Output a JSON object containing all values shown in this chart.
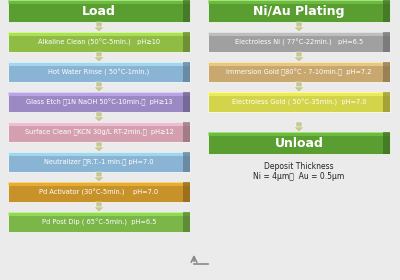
{
  "background_color": "#ebebeb",
  "left_column": {
    "title": "Load",
    "boxes": [
      {
        "text": "Alkaline Clean (50°C-5min.)   pH≥10",
        "color": "#8fbc45"
      },
      {
        "text": "Hot Water Rinse ( 50°C-1min.)",
        "color": "#8ab4d4"
      },
      {
        "text": "Glass Etch （1N NaOH 50°C-10min.）  pH≥13",
        "color": "#9b89c4"
      },
      {
        "text": "Surface Clean （KCN 30g/L RT-2min.）  pH≥12",
        "color": "#d4a0b0"
      },
      {
        "text": "Neutralizer （R.T.-1 min.） pH=7.0",
        "color": "#8ab4d4"
      },
      {
        "text": "Pd Activator (30°C-5min.)    pH=7.0",
        "color": "#c8922a"
      },
      {
        "text": "Pd Post Dip ( 65°C-5min.)  pH=6.5",
        "color": "#7ab648"
      }
    ]
  },
  "right_column": {
    "title": "Ni/Au Plating",
    "boxes": [
      {
        "text": "Electroless Ni ( 77°C-22min.)   pH=6.5",
        "color": "#a0a0a0"
      },
      {
        "text": "Immersion Gold （80°C - 7-10min.）  pH=7.2",
        "color": "#c8a86e"
      },
      {
        "text": "Electroless Gold ( 50°C-35min.)  pH=7.0",
        "color": "#d4d44a"
      }
    ],
    "unload_text": "Unload",
    "deposit_text": "Deposit Thickness\nNi = 4μm，  Au = 0.5μm"
  },
  "arrow_color": "#c8c896",
  "title_box_color": "#5a9e32"
}
